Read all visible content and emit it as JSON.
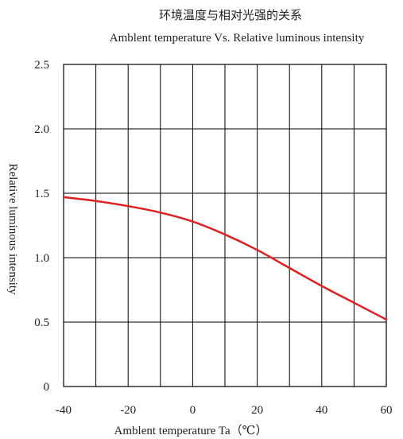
{
  "chart_data": {
    "type": "line",
    "title_cn": "环境温度与相对光强的关系",
    "title": "Amblent temperature  Vs.  Relative luminous intensity",
    "xlabel": "Amblent temperature Ta（℃）",
    "ylabel": "Relative luminous intensity",
    "xlim": [
      -40,
      60
    ],
    "ylim": [
      0,
      2.5
    ],
    "x_ticks": [
      -40,
      -20,
      0,
      20,
      40,
      60
    ],
    "x_tick_labels": [
      "-40",
      "-20",
      "0",
      "20",
      "40",
      "60"
    ],
    "y_ticks": [
      0,
      0.5,
      1.0,
      1.5,
      2.0,
      2.5
    ],
    "y_tick_labels": [
      "0",
      "0.5",
      "1.0",
      "1.5",
      "2.0",
      "2.5"
    ],
    "grid": true,
    "vertical_gridlines_every": 10,
    "series": [
      {
        "color": "#e02020",
        "x": [
          -40,
          -30,
          -20,
          -10,
          0,
          10,
          20,
          30,
          40,
          50,
          60
        ],
        "y": [
          1.47,
          1.44,
          1.4,
          1.35,
          1.28,
          1.18,
          1.06,
          0.92,
          0.78,
          0.65,
          0.52
        ]
      }
    ]
  }
}
